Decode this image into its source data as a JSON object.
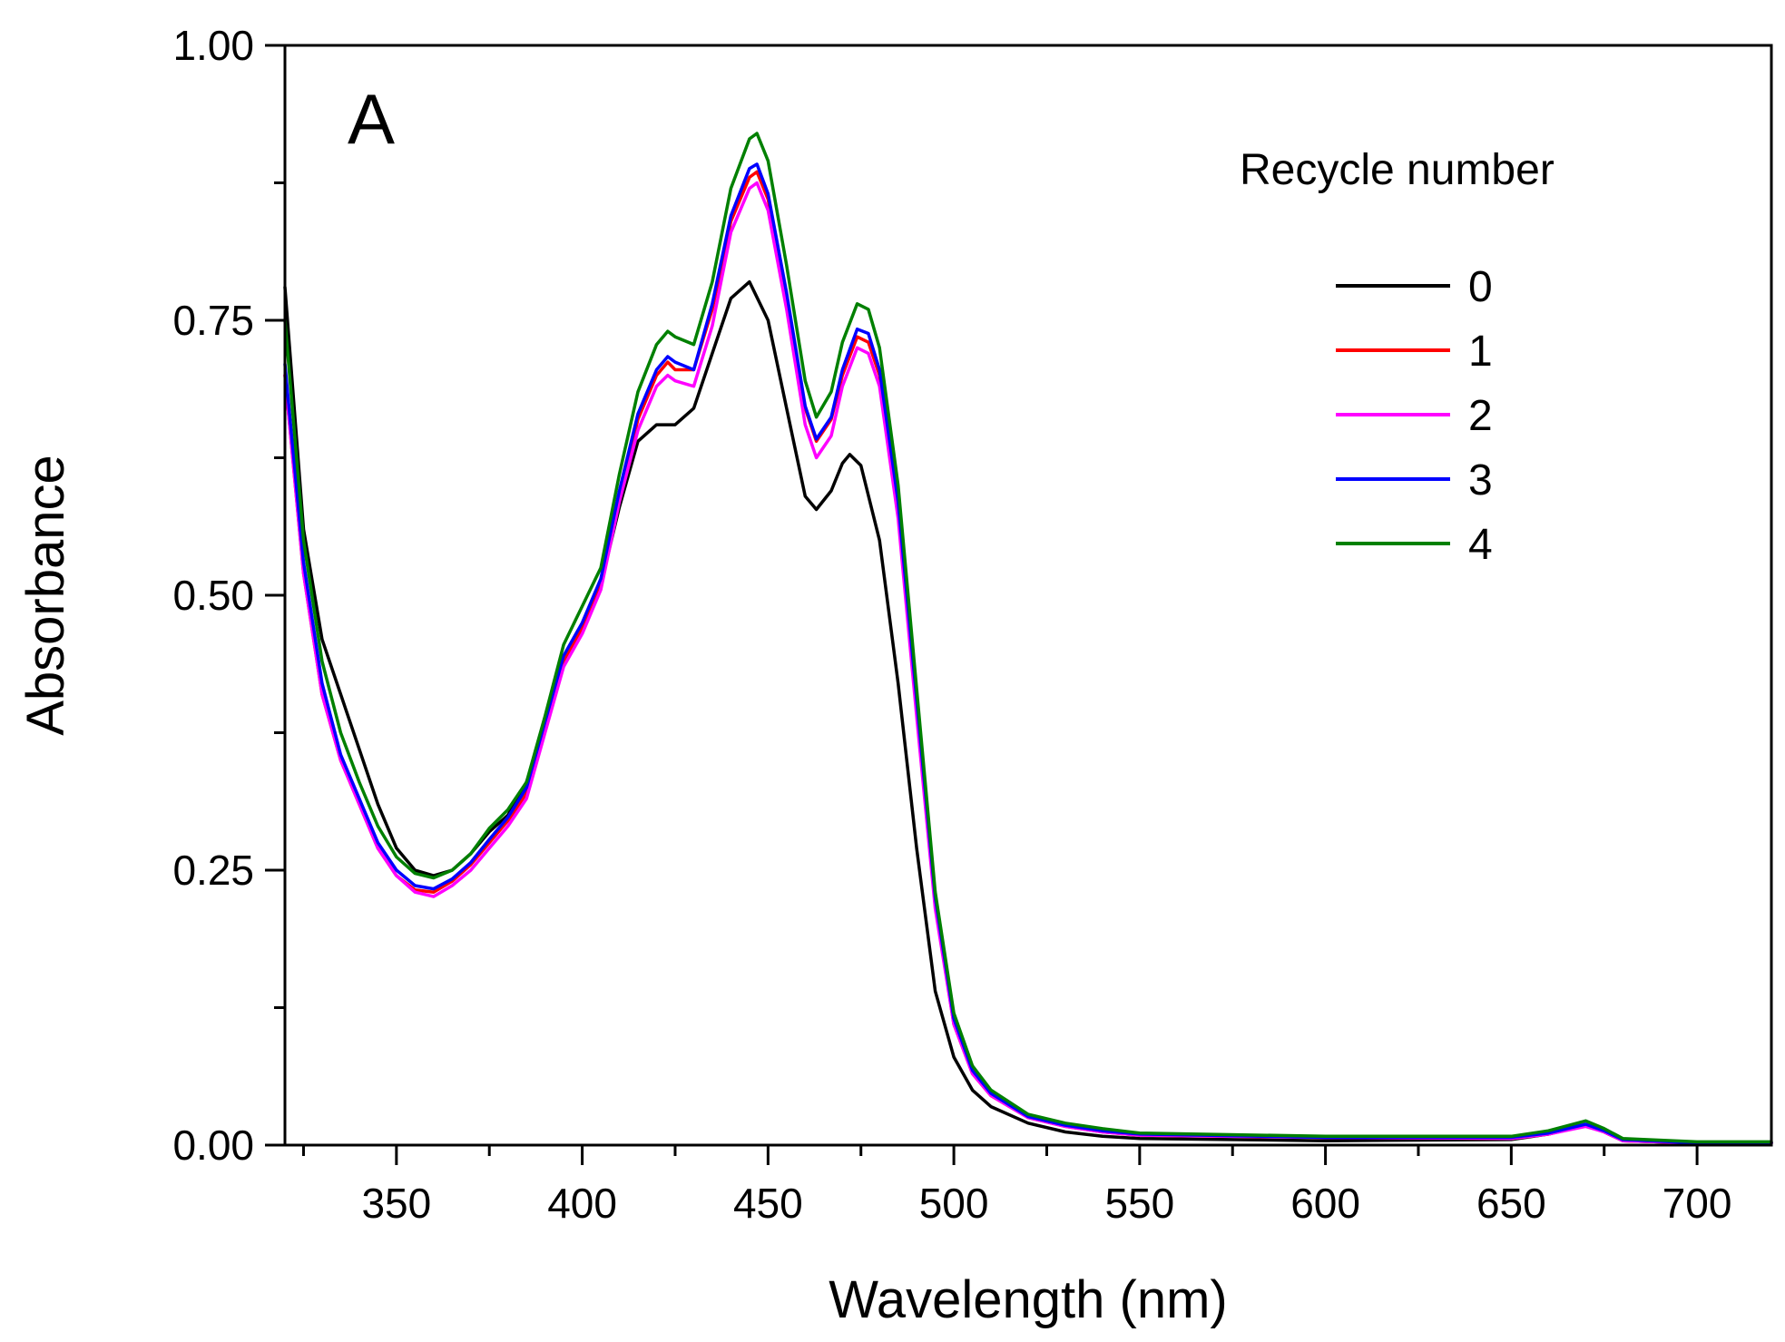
{
  "chart_data": {
    "type": "line",
    "panel_label": "A",
    "xlabel": "Wavelength (nm)",
    "ylabel": "Absorbance",
    "xlim": [
      320,
      720
    ],
    "ylim": [
      0,
      1.0
    ],
    "x_ticks": [
      350,
      400,
      450,
      500,
      550,
      600,
      650,
      700
    ],
    "x_tick_labels": [
      "350",
      "400",
      "450",
      "500",
      "550",
      "600",
      "650",
      "700"
    ],
    "y_ticks": [
      0,
      0.25,
      0.5,
      0.75,
      1.0
    ],
    "y_tick_labels": [
      "0.00",
      "0.25",
      "0.50",
      "0.75",
      "1.00"
    ],
    "grid": false,
    "legend": {
      "title": "Recycle number",
      "placement": "top-right"
    },
    "series": [
      {
        "name": "0",
        "color": "#000000",
        "points": [
          [
            320,
            0.78
          ],
          [
            325,
            0.56
          ],
          [
            330,
            0.46
          ],
          [
            335,
            0.41
          ],
          [
            340,
            0.36
          ],
          [
            345,
            0.31
          ],
          [
            350,
            0.27
          ],
          [
            355,
            0.25
          ],
          [
            360,
            0.245
          ],
          [
            365,
            0.25
          ],
          [
            370,
            0.265
          ],
          [
            375,
            0.285
          ],
          [
            380,
            0.3
          ],
          [
            385,
            0.33
          ],
          [
            390,
            0.38
          ],
          [
            395,
            0.44
          ],
          [
            400,
            0.47
          ],
          [
            405,
            0.51
          ],
          [
            410,
            0.58
          ],
          [
            415,
            0.64
          ],
          [
            420,
            0.655
          ],
          [
            425,
            0.655
          ],
          [
            430,
            0.67
          ],
          [
            435,
            0.72
          ],
          [
            440,
            0.77
          ],
          [
            445,
            0.785
          ],
          [
            450,
            0.75
          ],
          [
            455,
            0.67
          ],
          [
            460,
            0.59
          ],
          [
            463,
            0.578
          ],
          [
            467,
            0.595
          ],
          [
            470,
            0.62
          ],
          [
            472,
            0.628
          ],
          [
            475,
            0.618
          ],
          [
            480,
            0.55
          ],
          [
            485,
            0.42
          ],
          [
            490,
            0.27
          ],
          [
            495,
            0.14
          ],
          [
            500,
            0.08
          ],
          [
            505,
            0.05
          ],
          [
            510,
            0.035
          ],
          [
            520,
            0.02
          ],
          [
            530,
            0.012
          ],
          [
            540,
            0.008
          ],
          [
            550,
            0.006
          ],
          [
            600,
            0.004
          ],
          [
            650,
            0.005
          ],
          [
            660,
            0.01
          ],
          [
            670,
            0.018
          ],
          [
            675,
            0.012
          ],
          [
            680,
            0.004
          ],
          [
            700,
            0.002
          ],
          [
            720,
            0.002
          ]
        ]
      },
      {
        "name": "1",
        "color": "#ff0000",
        "points": [
          [
            320,
            0.7
          ],
          [
            325,
            0.52
          ],
          [
            330,
            0.41
          ],
          [
            335,
            0.35
          ],
          [
            340,
            0.31
          ],
          [
            345,
            0.27
          ],
          [
            350,
            0.245
          ],
          [
            355,
            0.232
          ],
          [
            360,
            0.23
          ],
          [
            365,
            0.24
          ],
          [
            370,
            0.255
          ],
          [
            375,
            0.275
          ],
          [
            380,
            0.295
          ],
          [
            385,
            0.32
          ],
          [
            390,
            0.38
          ],
          [
            395,
            0.44
          ],
          [
            400,
            0.47
          ],
          [
            405,
            0.51
          ],
          [
            410,
            0.59
          ],
          [
            415,
            0.66
          ],
          [
            420,
            0.7
          ],
          [
            423,
            0.712
          ],
          [
            425,
            0.705
          ],
          [
            430,
            0.705
          ],
          [
            435,
            0.76
          ],
          [
            440,
            0.84
          ],
          [
            445,
            0.88
          ],
          [
            447,
            0.885
          ],
          [
            450,
            0.86
          ],
          [
            455,
            0.77
          ],
          [
            460,
            0.67
          ],
          [
            463,
            0.64
          ],
          [
            467,
            0.66
          ],
          [
            470,
            0.7
          ],
          [
            474,
            0.735
          ],
          [
            477,
            0.73
          ],
          [
            480,
            0.7
          ],
          [
            485,
            0.58
          ],
          [
            490,
            0.4
          ],
          [
            495,
            0.22
          ],
          [
            500,
            0.11
          ],
          [
            505,
            0.065
          ],
          [
            510,
            0.045
          ],
          [
            520,
            0.025
          ],
          [
            530,
            0.017
          ],
          [
            540,
            0.012
          ],
          [
            550,
            0.009
          ],
          [
            600,
            0.007
          ],
          [
            650,
            0.006
          ],
          [
            660,
            0.01
          ],
          [
            670,
            0.018
          ],
          [
            675,
            0.012
          ],
          [
            680,
            0.004
          ],
          [
            700,
            0.002
          ],
          [
            720,
            0.002
          ]
        ]
      },
      {
        "name": "2",
        "color": "#ff00ff",
        "points": [
          [
            320,
            0.7
          ],
          [
            325,
            0.52
          ],
          [
            330,
            0.41
          ],
          [
            335,
            0.35
          ],
          [
            340,
            0.31
          ],
          [
            345,
            0.27
          ],
          [
            350,
            0.245
          ],
          [
            355,
            0.23
          ],
          [
            360,
            0.226
          ],
          [
            365,
            0.236
          ],
          [
            370,
            0.25
          ],
          [
            375,
            0.27
          ],
          [
            380,
            0.29
          ],
          [
            385,
            0.315
          ],
          [
            390,
            0.375
          ],
          [
            395,
            0.435
          ],
          [
            400,
            0.465
          ],
          [
            405,
            0.505
          ],
          [
            410,
            0.585
          ],
          [
            415,
            0.65
          ],
          [
            420,
            0.69
          ],
          [
            423,
            0.7
          ],
          [
            425,
            0.695
          ],
          [
            430,
            0.69
          ],
          [
            435,
            0.745
          ],
          [
            440,
            0.83
          ],
          [
            445,
            0.87
          ],
          [
            447,
            0.875
          ],
          [
            450,
            0.85
          ],
          [
            455,
            0.76
          ],
          [
            460,
            0.655
          ],
          [
            463,
            0.625
          ],
          [
            467,
            0.645
          ],
          [
            470,
            0.69
          ],
          [
            474,
            0.725
          ],
          [
            477,
            0.72
          ],
          [
            480,
            0.69
          ],
          [
            485,
            0.57
          ],
          [
            490,
            0.39
          ],
          [
            495,
            0.215
          ],
          [
            500,
            0.11
          ],
          [
            505,
            0.065
          ],
          [
            510,
            0.045
          ],
          [
            520,
            0.025
          ],
          [
            530,
            0.017
          ],
          [
            540,
            0.012
          ],
          [
            550,
            0.009
          ],
          [
            600,
            0.007
          ],
          [
            650,
            0.006
          ],
          [
            660,
            0.01
          ],
          [
            670,
            0.017
          ],
          [
            675,
            0.012
          ],
          [
            680,
            0.004
          ],
          [
            700,
            0.002
          ],
          [
            720,
            0.002
          ]
        ]
      },
      {
        "name": "3",
        "color": "#0000ff",
        "points": [
          [
            320,
            0.71
          ],
          [
            325,
            0.53
          ],
          [
            330,
            0.42
          ],
          [
            335,
            0.355
          ],
          [
            340,
            0.315
          ],
          [
            345,
            0.275
          ],
          [
            350,
            0.25
          ],
          [
            355,
            0.236
          ],
          [
            360,
            0.233
          ],
          [
            365,
            0.242
          ],
          [
            370,
            0.257
          ],
          [
            375,
            0.278
          ],
          [
            380,
            0.298
          ],
          [
            385,
            0.325
          ],
          [
            390,
            0.385
          ],
          [
            395,
            0.445
          ],
          [
            400,
            0.475
          ],
          [
            405,
            0.515
          ],
          [
            410,
            0.595
          ],
          [
            415,
            0.665
          ],
          [
            420,
            0.705
          ],
          [
            423,
            0.717
          ],
          [
            425,
            0.712
          ],
          [
            430,
            0.705
          ],
          [
            435,
            0.765
          ],
          [
            440,
            0.845
          ],
          [
            445,
            0.888
          ],
          [
            447,
            0.892
          ],
          [
            450,
            0.865
          ],
          [
            455,
            0.775
          ],
          [
            460,
            0.672
          ],
          [
            463,
            0.642
          ],
          [
            467,
            0.662
          ],
          [
            470,
            0.705
          ],
          [
            474,
            0.742
          ],
          [
            477,
            0.738
          ],
          [
            480,
            0.705
          ],
          [
            485,
            0.585
          ],
          [
            490,
            0.405
          ],
          [
            495,
            0.225
          ],
          [
            500,
            0.115
          ],
          [
            505,
            0.068
          ],
          [
            510,
            0.047
          ],
          [
            520,
            0.026
          ],
          [
            530,
            0.018
          ],
          [
            540,
            0.013
          ],
          [
            550,
            0.01
          ],
          [
            600,
            0.007
          ],
          [
            650,
            0.007
          ],
          [
            660,
            0.011
          ],
          [
            670,
            0.019
          ],
          [
            675,
            0.013
          ],
          [
            680,
            0.005
          ],
          [
            700,
            0.002
          ],
          [
            720,
            0.002
          ]
        ]
      },
      {
        "name": "4",
        "color": "#008000",
        "points": [
          [
            320,
            0.75
          ],
          [
            325,
            0.55
          ],
          [
            330,
            0.44
          ],
          [
            335,
            0.375
          ],
          [
            340,
            0.33
          ],
          [
            345,
            0.29
          ],
          [
            350,
            0.262
          ],
          [
            355,
            0.247
          ],
          [
            360,
            0.243
          ],
          [
            365,
            0.25
          ],
          [
            370,
            0.265
          ],
          [
            375,
            0.288
          ],
          [
            380,
            0.305
          ],
          [
            385,
            0.33
          ],
          [
            390,
            0.39
          ],
          [
            395,
            0.455
          ],
          [
            400,
            0.49
          ],
          [
            405,
            0.525
          ],
          [
            410,
            0.61
          ],
          [
            415,
            0.685
          ],
          [
            420,
            0.728
          ],
          [
            423,
            0.74
          ],
          [
            425,
            0.735
          ],
          [
            430,
            0.728
          ],
          [
            435,
            0.785
          ],
          [
            440,
            0.87
          ],
          [
            445,
            0.915
          ],
          [
            447,
            0.92
          ],
          [
            450,
            0.895
          ],
          [
            455,
            0.8
          ],
          [
            460,
            0.695
          ],
          [
            463,
            0.662
          ],
          [
            467,
            0.685
          ],
          [
            470,
            0.73
          ],
          [
            474,
            0.765
          ],
          [
            477,
            0.76
          ],
          [
            480,
            0.725
          ],
          [
            485,
            0.6
          ],
          [
            490,
            0.415
          ],
          [
            495,
            0.23
          ],
          [
            500,
            0.12
          ],
          [
            505,
            0.072
          ],
          [
            510,
            0.05
          ],
          [
            520,
            0.028
          ],
          [
            530,
            0.02
          ],
          [
            540,
            0.015
          ],
          [
            550,
            0.011
          ],
          [
            600,
            0.008
          ],
          [
            650,
            0.008
          ],
          [
            660,
            0.013
          ],
          [
            670,
            0.022
          ],
          [
            675,
            0.015
          ],
          [
            680,
            0.006
          ],
          [
            700,
            0.003
          ],
          [
            720,
            0.003
          ]
        ]
      }
    ]
  }
}
